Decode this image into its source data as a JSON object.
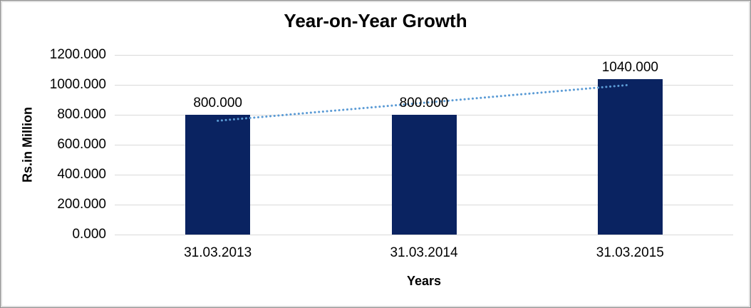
{
  "chart_data": {
    "type": "bar",
    "title": "Year-on-Year Growth",
    "xlabel": "Years",
    "ylabel": "Rs.in Million",
    "categories": [
      "31.03.2013",
      "31.03.2014",
      "31.03.2015"
    ],
    "series": [
      {
        "name": "Rs.in Million",
        "values": [
          800,
          800,
          1040
        ]
      }
    ],
    "data_labels": [
      "800.000",
      "800.000",
      "1040.000"
    ],
    "ylim": [
      0,
      1200
    ],
    "ytick_step": 200,
    "yticks": [
      0,
      200,
      400,
      600,
      800,
      1000,
      1200
    ],
    "ytick_labels": [
      "0.000",
      "200.000",
      "400.000",
      "600.000",
      "800.000",
      "1000.000",
      "1200.000"
    ],
    "grid": true,
    "legend": "none",
    "trendline": {
      "type": "linear",
      "style": "dotted",
      "start_value": 760,
      "end_value": 1000
    },
    "colors": {
      "bar": "#0a2361",
      "gridline": "#d9d9d9",
      "trendline": "#5b9bd5",
      "text": "#000000",
      "background": "#ffffff"
    }
  }
}
